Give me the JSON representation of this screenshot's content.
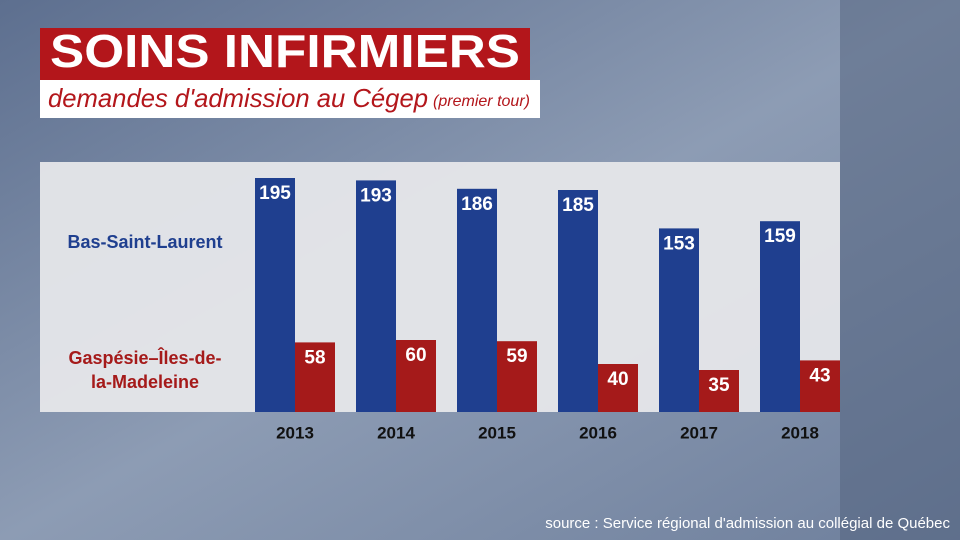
{
  "chart_data": {
    "type": "bar",
    "title": "SOINS INFIRMIERS",
    "subtitle": "demandes d'admission au Cégep",
    "subtitle_note": "(premier tour)",
    "source": "source : Service régional d'admission au collégial de Québec",
    "categories": [
      "2013",
      "2014",
      "2015",
      "2016",
      "2017",
      "2018"
    ],
    "series": [
      {
        "name": "Bas-Saint-Laurent",
        "color": "#1f3f8f",
        "values": [
          195,
          193,
          186,
          185,
          153,
          159
        ]
      },
      {
        "name": "Gaspésie–Îles-de-la-Madeleine",
        "color": "#a51a1a",
        "values": [
          58,
          60,
          59,
          40,
          35,
          43
        ]
      }
    ],
    "ylim": [
      0,
      200
    ]
  }
}
